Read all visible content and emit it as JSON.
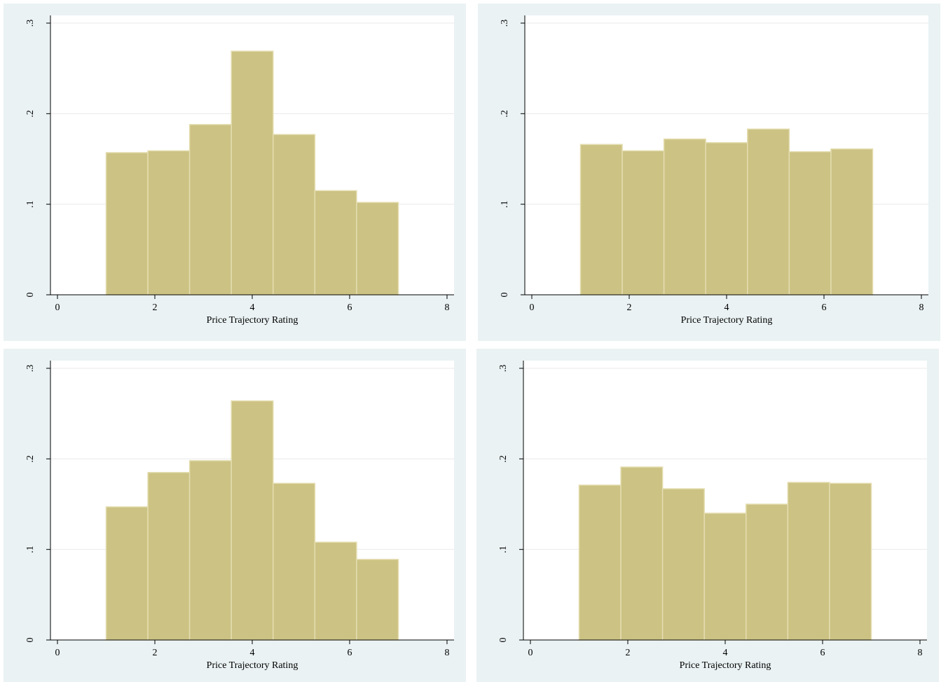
{
  "chart_data": [
    {
      "type": "histogram",
      "xlabel": "Price Trajectory Rating",
      "color": "#ccc283",
      "bins": [
        1,
        1.857,
        2.714,
        3.571,
        4.429,
        5.286,
        6.143,
        7
      ],
      "values": [
        0.157,
        0.159,
        0.188,
        0.269,
        0.177,
        0.115,
        0.102
      ],
      "xlim": [
        0,
        8
      ],
      "xticks": [
        0,
        2,
        4,
        6,
        8
      ],
      "ylim": [
        0,
        0.3
      ],
      "yticks": [
        0,
        {
          "value": 0.1,
          "label": ".1"
        },
        {
          "value": 0.2,
          "label": ".2"
        },
        {
          "value": 0.3,
          "label": ".3"
        }
      ],
      "grid": true
    },
    {
      "type": "histogram",
      "xlabel": "Price Trajectory Rating",
      "color": "#ccc283",
      "bins": [
        1,
        1.857,
        2.714,
        3.571,
        4.429,
        5.286,
        6.143,
        7
      ],
      "values": [
        0.166,
        0.159,
        0.172,
        0.168,
        0.183,
        0.158,
        0.161
      ],
      "xlim": [
        0,
        8
      ],
      "xticks": [
        0,
        2,
        4,
        6,
        8
      ],
      "ylim": [
        0,
        0.3
      ],
      "yticks": [
        0,
        {
          "value": 0.1,
          "label": ".1"
        },
        {
          "value": 0.2,
          "label": ".2"
        },
        {
          "value": 0.3,
          "label": ".3"
        }
      ],
      "grid": true
    },
    {
      "type": "histogram",
      "xlabel": "Price Trajectory Rating",
      "color": "#ccc283",
      "bins": [
        1,
        1.857,
        2.714,
        3.571,
        4.429,
        5.286,
        6.143,
        7
      ],
      "values": [
        0.147,
        0.185,
        0.198,
        0.264,
        0.173,
        0.108,
        0.089
      ],
      "xlim": [
        0,
        8
      ],
      "xticks": [
        0,
        2,
        4,
        6,
        8
      ],
      "ylim": [
        0,
        0.3
      ],
      "yticks": [
        0,
        {
          "value": 0.1,
          "label": ".1"
        },
        {
          "value": 0.2,
          "label": ".2"
        },
        {
          "value": 0.3,
          "label": ".3"
        }
      ],
      "grid": true
    },
    {
      "type": "histogram",
      "xlabel": "Price Trajectory Rating",
      "color": "#ccc283",
      "bins": [
        1,
        1.857,
        2.714,
        3.571,
        4.429,
        5.286,
        6.143,
        7
      ],
      "values": [
        0.171,
        0.191,
        0.167,
        0.14,
        0.15,
        0.174,
        0.173
      ],
      "xlim": [
        0,
        8
      ],
      "xticks": [
        0,
        2,
        4,
        6,
        8
      ],
      "ylim": [
        0,
        0.3
      ],
      "yticks": [
        0,
        {
          "value": 0.1,
          "label": ".1"
        },
        {
          "value": 0.2,
          "label": ".2"
        },
        {
          "value": 0.3,
          "label": ".3"
        }
      ],
      "grid": true
    }
  ]
}
